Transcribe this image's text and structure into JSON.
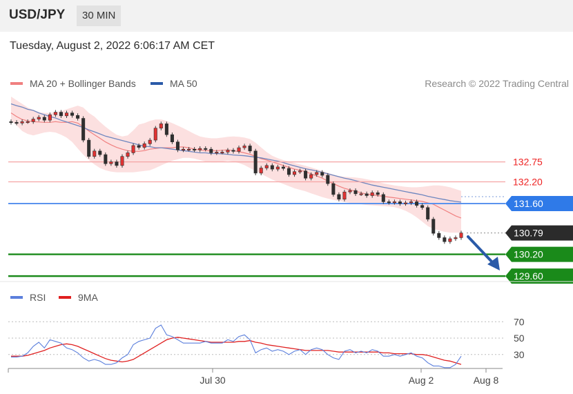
{
  "header": {
    "symbol": "USD/JPY",
    "timeframe": "30 MIN"
  },
  "datetime": "Tuesday, August 2, 2022 6:06:17 AM CET",
  "legend": {
    "ma20_label": "MA 20 + Bollinger Bands",
    "ma20_color": "#f08080",
    "ma50_label": "MA 50",
    "ma50_color": "#2a5aa8",
    "rsi_label": "RSI",
    "rsi_color": "#5b7fdc",
    "rsi_ma_label": "9MA",
    "rsi_ma_color": "#e02020"
  },
  "credit": "Research © 2022 Trading Central",
  "chart_data": [
    {
      "type": "candlestick",
      "ylim": [
        129.45,
        134.55
      ],
      "x_ticks": [
        "Jul 30",
        "Aug 2",
        "Aug 8"
      ],
      "current_price": "130.79",
      "levels": [
        {
          "label": "132.75",
          "value": 132.75,
          "kind": "resistance",
          "color": "#ee2222"
        },
        {
          "label": "132.20",
          "value": 132.2,
          "kind": "resistance",
          "color": "#ee2222"
        },
        {
          "label": "131.60",
          "value": 131.6,
          "kind": "pivot",
          "color": "#2f7ae8"
        },
        {
          "label": "130.20",
          "value": 130.2,
          "kind": "support",
          "color": "#1a8a1a"
        },
        {
          "label": "129.60",
          "value": 129.6,
          "kind": "support",
          "color": "#1a8a1a"
        }
      ],
      "close": [
        133.84,
        133.82,
        133.86,
        133.86,
        133.93,
        133.98,
        133.9,
        134.05,
        134.12,
        134.02,
        134.1,
        134.03,
        133.95,
        133.35,
        132.9,
        133.05,
        132.95,
        132.7,
        132.75,
        132.65,
        132.9,
        133.0,
        133.2,
        133.15,
        133.25,
        133.35,
        133.68,
        133.8,
        133.5,
        133.3,
        133.08,
        133.1,
        133.1,
        133.08,
        133.12,
        133.1,
        133.0,
        133.02,
        133.02,
        133.07,
        133.04,
        133.14,
        133.19,
        133.05,
        132.44,
        132.58,
        132.65,
        132.55,
        132.61,
        132.57,
        132.4,
        132.48,
        132.5,
        132.3,
        132.4,
        132.46,
        132.38,
        132.15,
        131.85,
        131.72,
        131.92,
        131.96,
        131.87,
        131.87,
        131.82,
        131.9,
        131.85,
        131.65,
        131.63,
        131.65,
        131.6,
        131.62,
        131.65,
        131.55,
        131.49,
        131.17,
        130.78,
        130.66,
        130.55,
        130.63,
        130.66,
        130.79
      ],
      "ma20": [
        134.1,
        134.0,
        133.92,
        133.88,
        133.86,
        133.85,
        133.84,
        133.84,
        133.86,
        133.84,
        133.84,
        133.86,
        133.82,
        133.72,
        133.6,
        133.5,
        133.4,
        133.3,
        133.22,
        133.15,
        133.1,
        133.06,
        133.04,
        133.04,
        133.06,
        133.1,
        133.12,
        133.14,
        133.14,
        133.14,
        133.16,
        133.16,
        133.14,
        133.1,
        133.08,
        133.06,
        133.06,
        133.06,
        133.07,
        133.08,
        133.06,
        133.03,
        133.0,
        132.96,
        132.9,
        132.84,
        132.8,
        132.75,
        132.7,
        132.65,
        132.6,
        132.55,
        132.52,
        132.48,
        132.42,
        132.36,
        132.3,
        132.22,
        132.15,
        132.08,
        132.02,
        131.98,
        131.94,
        131.9,
        131.86,
        131.84,
        131.82,
        131.8,
        131.78,
        131.76,
        131.74,
        131.72,
        131.7,
        131.68,
        131.66,
        131.62,
        131.58,
        131.5,
        131.42,
        131.34,
        131.26,
        131.2
      ],
      "ma50": [
        134.35,
        134.3,
        134.26,
        134.2,
        134.17,
        134.1,
        134.05,
        134.0,
        133.96,
        133.9,
        133.85,
        133.8,
        133.75,
        133.7,
        133.63,
        133.58,
        133.52,
        133.46,
        133.42,
        133.38,
        133.34,
        133.3,
        133.26,
        133.22,
        133.18,
        133.17,
        133.14,
        133.14,
        133.12,
        133.1,
        133.08,
        133.06,
        133.04,
        133.02,
        133.0,
        133.0,
        132.98,
        132.98,
        132.97,
        132.96,
        132.94,
        132.93,
        132.92,
        132.9,
        132.88,
        132.86,
        132.83,
        132.8,
        132.77,
        132.73,
        132.68,
        132.64,
        132.6,
        132.56,
        132.53,
        132.5,
        132.46,
        132.42,
        132.38,
        132.34,
        132.3,
        132.27,
        132.23,
        132.19,
        132.15,
        132.11,
        132.08,
        132.05,
        132.02,
        131.99,
        131.96,
        131.93,
        131.9,
        131.87,
        131.84,
        131.8,
        131.77,
        131.74,
        131.71,
        131.68,
        131.66,
        131.64
      ],
      "bb_upper": [
        134.55,
        134.45,
        134.35,
        134.25,
        134.18,
        134.12,
        134.1,
        134.1,
        134.12,
        134.15,
        134.2,
        134.25,
        134.3,
        134.25,
        134.1,
        134.0,
        133.85,
        133.72,
        133.6,
        133.5,
        133.45,
        133.48,
        133.62,
        133.78,
        133.82,
        133.88,
        133.92,
        133.92,
        133.88,
        133.82,
        133.75,
        133.68,
        133.6,
        133.52,
        133.45,
        133.42,
        133.4,
        133.4,
        133.42,
        133.44,
        133.45,
        133.44,
        133.42,
        133.38,
        133.28,
        133.15,
        133.02,
        132.92,
        132.85,
        132.8,
        132.76,
        132.72,
        132.68,
        132.64,
        132.6,
        132.55,
        132.5,
        132.45,
        132.4,
        132.36,
        132.34,
        132.33,
        132.32,
        132.3,
        132.27,
        132.24,
        132.2,
        132.16,
        132.13,
        132.1,
        132.08,
        132.06,
        132.05,
        132.05,
        132.06,
        132.08,
        132.1,
        132.1,
        132.08,
        132.05,
        132.0,
        131.95
      ],
      "bb_lower": [
        133.9,
        133.76,
        133.6,
        133.52,
        133.48,
        133.52,
        133.56,
        133.58,
        133.56,
        133.5,
        133.42,
        133.3,
        133.12,
        132.95,
        132.8,
        132.68,
        132.58,
        132.52,
        132.48,
        132.46,
        132.46,
        132.46,
        132.46,
        132.48,
        132.5,
        132.52,
        132.58,
        132.65,
        132.72,
        132.78,
        132.82,
        132.86,
        132.86,
        132.84,
        132.8,
        132.76,
        132.74,
        132.74,
        132.76,
        132.78,
        132.76,
        132.72,
        132.66,
        132.58,
        132.5,
        132.42,
        132.34,
        132.26,
        132.2,
        132.14,
        132.08,
        132.02,
        131.98,
        131.94,
        131.88,
        131.83,
        131.78,
        131.74,
        131.7,
        131.67,
        131.64,
        131.62,
        131.6,
        131.58,
        131.56,
        131.55,
        131.54,
        131.53,
        131.52,
        131.5,
        131.46,
        131.4,
        131.32,
        131.22,
        131.1,
        130.98,
        130.9,
        130.86,
        130.82,
        130.8,
        130.8,
        130.8
      ]
    },
    {
      "type": "line",
      "ylim": [
        13,
        82
      ],
      "y_ticks": [
        70,
        50,
        30
      ],
      "series": [
        {
          "name": "RSI",
          "values": [
            27,
            27,
            28,
            32,
            40,
            45,
            38,
            48,
            46,
            44,
            38,
            36,
            32,
            26,
            22,
            24,
            22,
            18,
            18,
            20,
            26,
            30,
            42,
            46,
            48,
            50,
            62,
            66,
            54,
            52,
            48,
            44,
            44,
            44,
            44,
            46,
            44,
            44,
            44,
            48,
            46,
            52,
            54,
            48,
            32,
            36,
            38,
            34,
            36,
            34,
            30,
            34,
            36,
            30,
            36,
            38,
            36,
            30,
            26,
            24,
            34,
            36,
            32,
            34,
            32,
            36,
            34,
            28,
            28,
            30,
            28,
            30,
            32,
            28,
            26,
            20,
            16,
            16,
            14,
            14,
            18,
            28
          ]
        },
        {
          "name": "9MA",
          "values": [
            28,
            28,
            28,
            29,
            31,
            33,
            35,
            38,
            40,
            42,
            43,
            42,
            40,
            37,
            34,
            31,
            28,
            25,
            23,
            22,
            21,
            22,
            24,
            28,
            32,
            36,
            40,
            44,
            48,
            50,
            51,
            50,
            49,
            48,
            47,
            46,
            45,
            45,
            45,
            45,
            45,
            46,
            46,
            47,
            45,
            44,
            42,
            41,
            40,
            39,
            38,
            37,
            36,
            35,
            35,
            35,
            35,
            35,
            34,
            33,
            33,
            33,
            33,
            33,
            33,
            33,
            33,
            32,
            32,
            31,
            31,
            31,
            31,
            30,
            30,
            29,
            27,
            25,
            23,
            22,
            20,
            18
          ]
        }
      ]
    }
  ]
}
